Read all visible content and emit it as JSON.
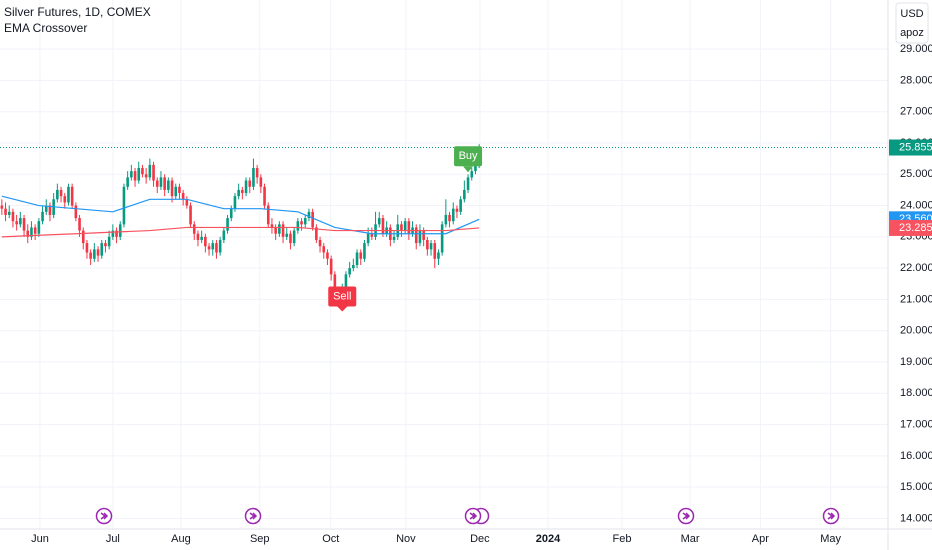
{
  "header": {
    "title": "Silver Futures, 1D, COMEX",
    "indicator": "EMA Crossover",
    "currency": "USD",
    "scale_mode": "apoz"
  },
  "chart_data": {
    "type": "candlestick",
    "open": [
      24.0,
      23.9,
      23.7,
      23.8,
      23.5,
      23.4,
      23.6,
      23.2,
      23.0,
      23.3,
      23.1,
      23.5,
      23.8,
      24.0,
      23.7,
      24.2,
      24.5,
      24.3,
      24.1,
      24.6,
      24.0,
      23.6,
      23.2,
      22.8,
      22.5,
      22.3,
      22.6,
      22.4,
      22.8,
      22.7,
      23.0,
      23.2,
      23.0,
      23.4,
      24.6,
      24.9,
      25.1,
      24.8,
      25.2,
      25.0,
      24.9,
      25.3,
      24.8,
      24.6,
      24.9,
      24.5,
      24.8,
      24.3,
      24.6,
      24.4,
      24.2,
      24.0,
      23.4,
      23.1,
      22.9,
      23.0,
      22.7,
      22.6,
      22.8,
      22.5,
      22.9,
      23.2,
      23.6,
      23.9,
      24.3,
      24.5,
      24.4,
      24.8,
      24.6,
      25.2,
      24.9,
      24.6,
      24.0,
      23.4,
      23.3,
      23.1,
      23.4,
      23.0,
      23.1,
      22.8,
      23.2,
      23.5,
      23.4,
      23.6,
      23.8,
      23.3,
      22.9,
      22.7,
      22.5,
      22.3,
      21.8,
      21.2,
      21.0,
      21.3,
      21.8,
      22.0,
      22.1,
      22.5,
      22.3,
      22.8,
      23.1,
      23.0,
      23.4,
      23.6,
      23.1,
      23.3,
      22.9,
      23.0,
      23.4,
      23.2,
      23.5,
      23.1,
      23.3,
      22.8,
      23.2,
      22.9,
      22.6,
      22.8,
      22.3,
      22.5,
      23.4,
      23.7,
      23.5,
      23.9,
      23.8,
      24.2,
      24.5,
      24.9,
      25.1,
      25.3
    ],
    "high": [
      24.2,
      24.1,
      24.0,
      23.9,
      23.7,
      23.8,
      23.7,
      23.4,
      23.5,
      23.4,
      23.6,
      24.0,
      24.2,
      24.1,
      24.4,
      24.7,
      24.6,
      24.4,
      24.7,
      24.7,
      24.1,
      23.7,
      23.3,
      22.9,
      22.6,
      22.8,
      22.7,
      22.9,
      22.9,
      23.2,
      23.4,
      23.3,
      23.5,
      24.7,
      25.1,
      25.3,
      25.2,
      25.4,
      25.3,
      25.2,
      25.5,
      25.4,
      24.9,
      25.1,
      25.0,
      24.9,
      24.9,
      24.7,
      24.7,
      24.5,
      24.3,
      24.1,
      23.5,
      23.2,
      23.2,
      23.1,
      22.8,
      22.9,
      22.9,
      23.0,
      23.3,
      23.7,
      24.0,
      24.4,
      24.7,
      24.6,
      24.9,
      24.9,
      25.5,
      25.3,
      25.0,
      24.7,
      24.1,
      23.6,
      23.4,
      23.5,
      23.5,
      23.3,
      23.2,
      23.3,
      23.6,
      23.6,
      23.7,
      23.9,
      23.9,
      23.4,
      23.0,
      22.8,
      22.6,
      22.4,
      21.9,
      21.4,
      21.5,
      21.9,
      22.2,
      22.3,
      22.6,
      22.6,
      22.9,
      23.3,
      23.3,
      23.8,
      23.8,
      23.7,
      23.5,
      23.4,
      23.2,
      23.7,
      23.5,
      23.6,
      23.6,
      23.5,
      23.4,
      23.4,
      23.3,
      23.0,
      22.9,
      22.9,
      22.6,
      23.5,
      24.2,
      23.8,
      24.1,
      24.0,
      24.3,
      24.8,
      25.0,
      25.2,
      25.5,
      25.96
    ],
    "low": [
      23.7,
      23.5,
      23.6,
      23.3,
      23.2,
      23.3,
      23.0,
      22.8,
      22.9,
      22.9,
      23.0,
      23.4,
      23.7,
      23.5,
      23.6,
      24.1,
      24.1,
      23.9,
      24.0,
      23.9,
      23.5,
      23.0,
      22.6,
      22.3,
      22.1,
      22.2,
      22.2,
      22.3,
      22.5,
      22.6,
      22.9,
      22.8,
      22.9,
      23.3,
      24.5,
      24.8,
      24.6,
      24.7,
      24.9,
      24.7,
      24.8,
      24.6,
      24.4,
      24.5,
      24.3,
      24.4,
      24.1,
      24.2,
      24.2,
      24.0,
      23.9,
      23.3,
      22.9,
      22.7,
      22.8,
      22.5,
      22.4,
      22.4,
      22.3,
      22.4,
      22.8,
      23.1,
      23.5,
      23.8,
      24.2,
      24.2,
      24.3,
      24.4,
      24.5,
      24.7,
      24.4,
      23.9,
      23.3,
      23.1,
      22.9,
      23.0,
      22.8,
      22.9,
      22.6,
      22.7,
      23.1,
      23.2,
      23.3,
      23.5,
      23.2,
      22.8,
      22.5,
      22.3,
      22.1,
      21.6,
      21.0,
      20.9,
      20.9,
      21.2,
      21.7,
      21.9,
      22.0,
      22.1,
      22.2,
      22.7,
      22.9,
      22.9,
      23.3,
      23.0,
      23.0,
      22.7,
      22.8,
      22.9,
      23.0,
      23.1,
      22.9,
      23.0,
      22.6,
      22.7,
      22.7,
      22.4,
      22.4,
      22.0,
      22.1,
      22.4,
      23.3,
      23.3,
      23.4,
      23.6,
      23.7,
      24.1,
      24.4,
      24.8,
      25.0,
      25.2
    ],
    "close": [
      23.9,
      23.7,
      23.8,
      23.5,
      23.4,
      23.6,
      23.2,
      23.0,
      23.3,
      23.1,
      23.5,
      23.8,
      24.0,
      23.7,
      24.2,
      24.5,
      24.3,
      24.1,
      24.6,
      24.0,
      23.6,
      23.2,
      22.8,
      22.5,
      22.3,
      22.6,
      22.4,
      22.8,
      22.7,
      23.0,
      23.2,
      23.0,
      23.4,
      24.6,
      24.9,
      25.1,
      24.8,
      25.2,
      25.0,
      24.9,
      25.3,
      24.8,
      24.6,
      24.9,
      24.5,
      24.8,
      24.3,
      24.6,
      24.4,
      24.2,
      24.0,
      23.4,
      23.1,
      22.9,
      23.0,
      22.7,
      22.6,
      22.8,
      22.5,
      22.9,
      23.2,
      23.6,
      23.9,
      24.3,
      24.5,
      24.4,
      24.8,
      24.6,
      25.2,
      24.9,
      24.6,
      24.0,
      23.4,
      23.3,
      23.1,
      23.4,
      23.0,
      23.1,
      22.8,
      23.2,
      23.5,
      23.4,
      23.6,
      23.8,
      23.3,
      22.9,
      22.7,
      22.5,
      22.3,
      21.8,
      21.2,
      21.0,
      21.3,
      21.8,
      22.0,
      22.1,
      22.5,
      22.3,
      22.8,
      23.1,
      23.0,
      23.4,
      23.6,
      23.1,
      23.3,
      22.9,
      23.0,
      23.4,
      23.2,
      23.5,
      23.1,
      23.3,
      22.8,
      23.2,
      22.9,
      22.6,
      22.8,
      22.3,
      22.5,
      23.4,
      23.7,
      23.5,
      23.9,
      23.8,
      24.2,
      24.5,
      24.9,
      25.1,
      25.3,
      25.855
    ],
    "up_color": "#089981",
    "down_color": "#f23645",
    "series": [
      {
        "color": "#2196f3",
        "x": [
          0,
          10,
          20,
          30,
          40,
          50,
          60,
          70,
          80,
          90,
          100,
          110,
          120,
          129
        ],
        "values": [
          24.3,
          24.0,
          23.9,
          23.8,
          24.2,
          24.2,
          23.9,
          23.9,
          23.8,
          23.3,
          23.1,
          23.1,
          23.1,
          23.56
        ],
        "last_value_label": "23.560"
      },
      {
        "color": "#f7525f",
        "x": [
          0,
          10,
          20,
          30,
          40,
          50,
          60,
          70,
          80,
          90,
          100,
          110,
          120,
          129
        ],
        "values": [
          23.0,
          23.05,
          23.1,
          23.15,
          23.2,
          23.3,
          23.3,
          23.3,
          23.3,
          23.2,
          23.2,
          23.2,
          23.2,
          23.285
        ],
        "last_value_label": "23.285"
      }
    ],
    "annotations": [
      {
        "text": "Sell",
        "x": 92,
        "color": "#f23645"
      },
      {
        "text": "Buy",
        "x": 126,
        "color": "#4caf50"
      }
    ],
    "xlim": [
      -0.5,
      239.5
    ],
    "xticks": [
      {
        "value": 10.3,
        "label": "Jun"
      },
      {
        "value": 30,
        "label": "Jul"
      },
      {
        "value": 48.4,
        "label": "Aug"
      },
      {
        "value": 69.7,
        "label": "Sep"
      },
      {
        "value": 88.9,
        "label": "Oct"
      },
      {
        "value": 109.2,
        "label": "Nov"
      },
      {
        "value": 129.2,
        "label": "Dec"
      },
      {
        "value": 147.6,
        "label": "2024"
      },
      {
        "value": 167.6,
        "label": "Feb"
      },
      {
        "value": 186,
        "label": "Mar"
      },
      {
        "value": 205,
        "label": "Apr"
      },
      {
        "value": 224,
        "label": "May"
      }
    ],
    "ylim": [
      13.63,
      30.57
    ],
    "yticks": [
      {
        "value": 14,
        "label": "14.000"
      },
      {
        "value": 15,
        "label": "15.000"
      },
      {
        "value": 16,
        "label": "16.000"
      },
      {
        "value": 17,
        "label": "17.000"
      },
      {
        "value": 18,
        "label": "18.000"
      },
      {
        "value": 19,
        "label": "19.000"
      },
      {
        "value": 20,
        "label": "20.000"
      },
      {
        "value": 21,
        "label": "21.000"
      },
      {
        "value": 22,
        "label": "22.000"
      },
      {
        "value": 23,
        "label": "23.000"
      },
      {
        "value": 24,
        "label": "24.000"
      },
      {
        "value": 25,
        "label": "25.000"
      },
      {
        "value": 26,
        "label": "26.000"
      },
      {
        "value": 27,
        "label": "27.000"
      },
      {
        "value": 28,
        "label": "28.000"
      },
      {
        "value": 29,
        "label": "29.000"
      }
    ],
    "grid": true
  }
}
